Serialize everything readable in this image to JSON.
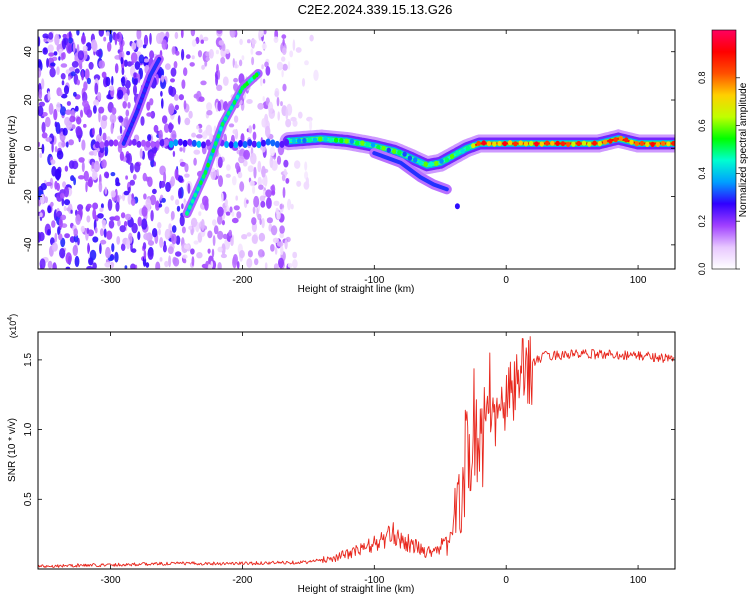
{
  "title": "C2E2.2024.339.15.13.G26",
  "chart_data": [
    {
      "type": "heatmap",
      "xlabel": "Height of straight line (km)",
      "ylabel": "Frequency (Hz)",
      "xlim": [
        -355,
        128
      ],
      "ylim": [
        -50,
        49
      ],
      "xticks": [
        -300,
        -200,
        -100,
        0,
        100
      ],
      "yticks": [
        -40,
        -20,
        0,
        20,
        40
      ],
      "grid": false,
      "colorbar": {
        "label": "Normalized spectral amplitude",
        "range": [
          0,
          1
        ],
        "ticks": [
          "0.0",
          "0.2",
          "0.4",
          "0.6",
          "0.8"
        ],
        "colors": [
          "#ffffff",
          "#e8c8ff",
          "#a040ff",
          "#3000ff",
          "#00a0ff",
          "#00ffd0",
          "#00ff00",
          "#c0ff00",
          "#ffd000",
          "#ff5000",
          "#ff0000",
          "#ff0060"
        ]
      },
      "features": [
        {
          "name": "",
          "trace": [
            [
              -165,
              3
            ],
            [
              -140,
              4
            ],
            [
              -120,
              3
            ],
            [
              -100,
              1
            ],
            [
              -85,
              -1
            ],
            [
              -72,
              -4
            ],
            [
              -60,
              -7
            ],
            [
              -50,
              -6
            ],
            [
              -40,
              -3
            ],
            [
              -30,
              0
            ],
            [
              -20,
              2
            ],
            [
              0,
              2
            ],
            [
              40,
              2
            ],
            [
              70,
              2
            ],
            [
              85,
              4
            ],
            [
              100,
              2
            ],
            [
              128,
              2
            ]
          ]
        },
        {
          "name": "",
          "trace": [
            [
              -242,
              -27
            ],
            [
              -228,
              -10
            ],
            [
              -215,
              10
            ],
            [
              -200,
              25
            ],
            [
              -188,
              31
            ]
          ]
        },
        {
          "name": "",
          "trace": [
            [
              -290,
              2
            ],
            [
              -280,
              15
            ],
            [
              -270,
              30
            ],
            [
              -263,
              37
            ]
          ]
        }
      ]
    },
    {
      "type": "line",
      "xlabel": "Height of straight line (km)",
      "ylabel": "SNR (10 * v/v)",
      "yscale_label": "(x10",
      "yscale_exp": "4",
      "xlim": [
        -355,
        128
      ],
      "ylim": [
        0,
        1.7
      ],
      "xticks": [
        -300,
        -200,
        -100,
        0,
        100
      ],
      "yticks": [
        "0.5",
        "1.0",
        "1.5"
      ],
      "color": "#e8281e",
      "grid": false,
      "envelope": [
        [
          -355,
          0.02
        ],
        [
          -300,
          0.03
        ],
        [
          -250,
          0.04
        ],
        [
          -200,
          0.04
        ],
        [
          -150,
          0.05
        ],
        [
          -130,
          0.08
        ],
        [
          -110,
          0.14
        ],
        [
          -95,
          0.2
        ],
        [
          -85,
          0.25
        ],
        [
          -75,
          0.19
        ],
        [
          -60,
          0.12
        ],
        [
          -45,
          0.18
        ],
        [
          -35,
          0.5
        ],
        [
          -30,
          0.8
        ],
        [
          -25,
          1.0
        ],
        [
          -20,
          0.95
        ],
        [
          -15,
          1.0
        ],
        [
          -10,
          1.05
        ],
        [
          -5,
          1.12
        ],
        [
          0,
          1.2
        ],
        [
          10,
          1.35
        ],
        [
          20,
          1.48
        ],
        [
          30,
          1.53
        ],
        [
          50,
          1.54
        ],
        [
          80,
          1.54
        ],
        [
          100,
          1.53
        ],
        [
          115,
          1.52
        ],
        [
          128,
          1.5
        ]
      ]
    }
  ]
}
